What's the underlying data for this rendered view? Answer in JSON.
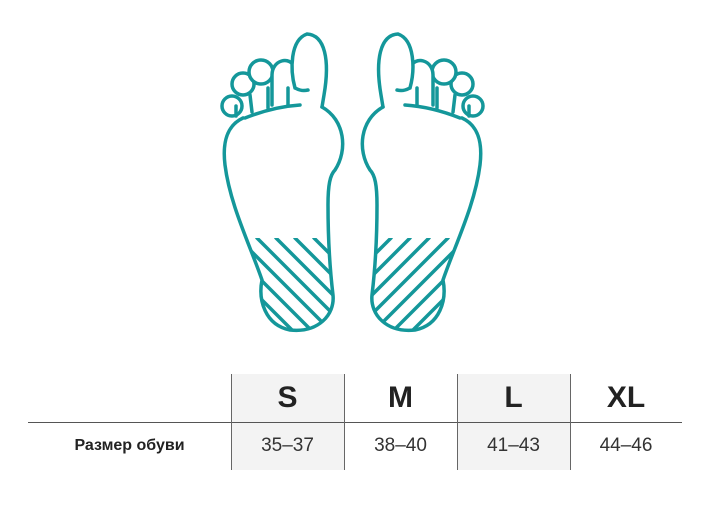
{
  "accent_color": "#14979a",
  "illustration": "foot-soles-icon",
  "table": {
    "row_label": "Размер обуви",
    "sizes": [
      {
        "size": "S",
        "range": "35–37"
      },
      {
        "size": "M",
        "range": "38–40"
      },
      {
        "size": "L",
        "range": "41–43"
      },
      {
        "size": "XL",
        "range": "44–46"
      }
    ]
  }
}
